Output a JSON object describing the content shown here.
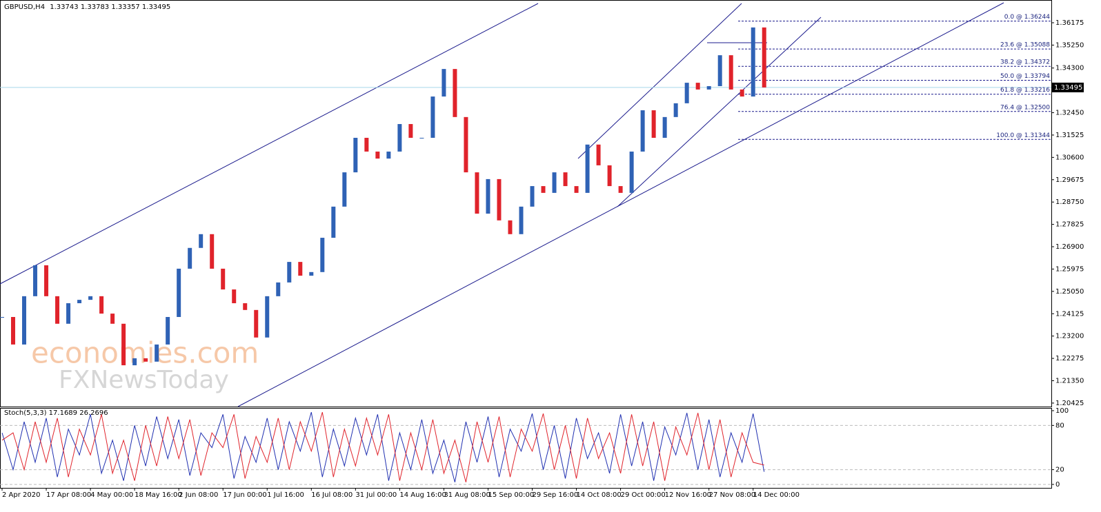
{
  "chart_data": [
    {
      "type": "candlestick",
      "title": "GBPUSD,H4",
      "ohlc": [
        1.33743,
        1.33783,
        1.33357,
        1.33495
      ],
      "up_color": "#2f62b5",
      "down_color": "#e0232b",
      "values": [
        1.2399,
        1.2285,
        1.2485,
        1.2613,
        1.2485,
        1.2371,
        1.2456,
        1.247,
        1.2485,
        1.2413,
        1.2371,
        1.2199,
        1.2228,
        1.2214,
        1.2285,
        1.2399,
        1.2599,
        1.2685,
        1.2742,
        1.2599,
        1.2513,
        1.2456,
        1.2428,
        1.2314,
        1.2485,
        1.2542,
        1.2627,
        1.257,
        1.2585,
        1.2727,
        1.2856,
        1.2998,
        1.3141,
        1.3084,
        1.3055,
        1.3084,
        1.3198,
        1.3141,
        1.3141,
        1.3312,
        1.3426,
        1.3227,
        1.2998,
        1.2827,
        1.297,
        1.2799,
        1.2742,
        1.2856,
        1.2941,
        1.2913,
        1.2998,
        1.2941,
        1.2913,
        1.3113,
        1.3027,
        1.2941,
        1.2913,
        1.3084,
        1.3255,
        1.3141,
        1.3227,
        1.3284,
        1.3369,
        1.3341,
        1.3355,
        1.3483,
        1.3341,
        1.3312,
        1.3598,
        1.33495
      ],
      "xlim": [
        0,
        95
      ],
      "ylim": [
        1.2028,
        1.3706
      ],
      "xticks": [
        {
          "value": 0,
          "label": "2 Apr 2020"
        },
        {
          "value": 4,
          "label": "17 Apr 08:00"
        },
        {
          "value": 8,
          "label": "4 May 00:00"
        },
        {
          "value": 12,
          "label": "18 May 16:00"
        },
        {
          "value": 16,
          "label": "2 Jun 08:00"
        },
        {
          "value": 20,
          "label": "17 Jun 00:00"
        },
        {
          "value": 24,
          "label": "1 Jul 16:00"
        },
        {
          "value": 28,
          "label": "16 Jul 08:00"
        },
        {
          "value": 32,
          "label": "31 Jul 00:00"
        },
        {
          "value": 36,
          "label": "14 Aug 16:00"
        },
        {
          "value": 40,
          "label": "31 Aug 08:00"
        },
        {
          "value": 44,
          "label": "15 Sep 00:00"
        },
        {
          "value": 48,
          "label": "29 Sep 16:00"
        },
        {
          "value": 52,
          "label": "14 Oct 08:00"
        },
        {
          "value": 56,
          "label": "29 Oct 00:00"
        },
        {
          "value": 60,
          "label": "12 Nov 16:00"
        },
        {
          "value": 64,
          "label": "27 Nov 08:00"
        },
        {
          "value": 68,
          "label": "14 Dec 00:00"
        }
      ],
      "yticks": [
        1.36175,
        {
          "value": 1.3525,
          "label": "1.35250"
        },
        {
          "value": 1.343,
          "label": "1.34300"
        },
        {
          "value": 1.3245,
          "label": "1.32450"
        },
        1.31525,
        {
          "value": 1.306,
          "label": "1.30600"
        },
        1.29675,
        {
          "value": 1.2875,
          "label": "1.28750"
        },
        1.27825,
        {
          "value": 1.269,
          "label": "1.26900"
        },
        1.25975,
        {
          "value": 1.2505,
          "label": "1.25050"
        },
        1.24125,
        {
          "value": 1.232,
          "label": "1.23200"
        },
        1.22275,
        {
          "value": 1.2135,
          "label": "1.21350"
        },
        1.20425
      ],
      "current_price": 1.33495,
      "fib_levels": [
        {
          "label": "0.0 @ 1.36244",
          "value": 1.36244
        },
        {
          "label": "23.6 @ 1.35088",
          "value": 1.35088
        },
        {
          "label": "38.2 @ 1.34372",
          "value": 1.34372
        },
        {
          "label": "50.0 @ 1.33794",
          "value": 1.33794
        },
        {
          "label": "61.8 @ 1.33216",
          "value": 1.33216
        },
        {
          "label": "76.4 @ 1.32500",
          "value": 1.325
        },
        {
          "label": "100.0 @ 1.31344",
          "value": 1.31344
        }
      ],
      "watermark": [
        "economies.com",
        "FXNewsToday"
      ]
    },
    {
      "type": "line",
      "title": "Stoch(5,3,3)",
      "header_values": [
        17.1689,
        26.2696
      ],
      "xlim": [
        0,
        95
      ],
      "ylim": [
        -4.7,
        103.7
      ],
      "yticks": [
        0,
        20,
        80,
        100
      ],
      "grid": true,
      "series": [
        {
          "color": "#1f2fb0",
          "values": [
            70,
            20,
            85,
            30,
            90,
            10,
            75,
            40,
            95,
            15,
            60,
            5,
            80,
            25,
            92,
            35,
            88,
            12,
            70,
            50,
            95,
            8,
            65,
            30,
            90,
            20,
            85,
            45,
            98,
            10,
            75,
            25,
            90,
            40,
            95,
            5,
            70,
            20,
            88,
            15,
            60,
            3,
            85,
            30,
            92,
            10,
            75,
            45,
            96,
            20,
            80,
            8,
            90,
            35,
            70,
            15,
            95,
            25,
            85,
            5,
            78,
            40,
            97,
            20,
            88,
            10,
            70,
            30,
            96,
            17.1689
          ]
        },
        {
          "color": "#e0232b",
          "values": [
            60,
            70,
            20,
            85,
            30,
            90,
            10,
            75,
            40,
            95,
            15,
            60,
            5,
            80,
            25,
            92,
            35,
            88,
            12,
            70,
            50,
            95,
            8,
            65,
            30,
            90,
            20,
            85,
            45,
            98,
            10,
            75,
            25,
            90,
            40,
            95,
            5,
            70,
            20,
            88,
            15,
            60,
            3,
            85,
            30,
            92,
            10,
            75,
            45,
            96,
            20,
            80,
            8,
            90,
            35,
            70,
            15,
            95,
            25,
            85,
            5,
            78,
            40,
            97,
            20,
            88,
            10,
            70,
            30,
            26.2696
          ]
        }
      ]
    }
  ]
}
